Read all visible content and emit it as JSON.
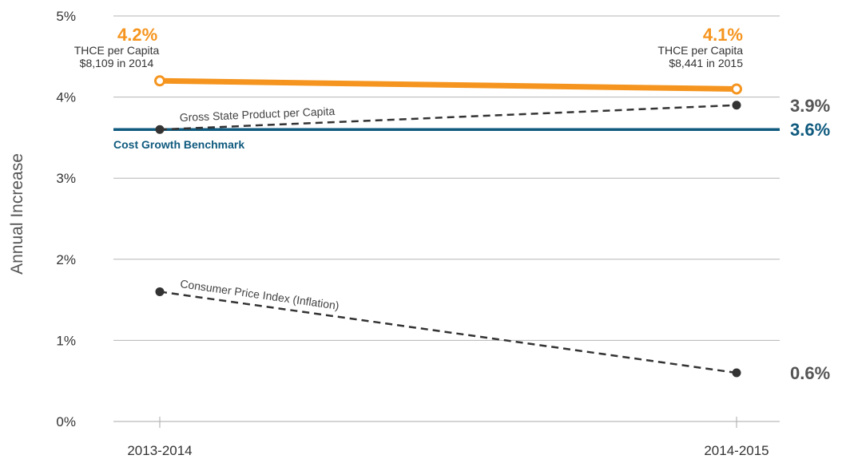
{
  "chart_data": {
    "type": "line",
    "categories": [
      "2013-2014",
      "2014-2015"
    ],
    "ylabel": "Annual Increase",
    "ylim": [
      0,
      5
    ],
    "yticks": [
      "0%",
      "1%",
      "2%",
      "3%",
      "4%",
      "5%"
    ],
    "grid": true,
    "series": [
      {
        "name": "THCE per Capita",
        "values": [
          4.2,
          4.1
        ],
        "color": "#f5951f",
        "style": "solid-thick-hollow-markers",
        "point_labels": [
          "4.2%",
          "4.1%"
        ],
        "annotations": [
          {
            "line1": "THCE per Capita",
            "line2": "$8,109 in 2014"
          },
          {
            "line1": "THCE per Capita",
            "line2": "$8,441 in 2015"
          }
        ]
      },
      {
        "name": "Gross State Product per Capita",
        "values": [
          3.6,
          3.9
        ],
        "color": "#333333",
        "style": "dashed",
        "end_label": "3.9%"
      },
      {
        "name": "Consumer Price Index (Inflation)",
        "values": [
          1.6,
          0.6
        ],
        "color": "#333333",
        "style": "dashed",
        "end_label": "0.6%"
      }
    ],
    "benchmark": {
      "name": "Cost Growth Benchmark",
      "value": 3.6,
      "color": "#0f5a7e",
      "end_label": "3.6%"
    }
  }
}
